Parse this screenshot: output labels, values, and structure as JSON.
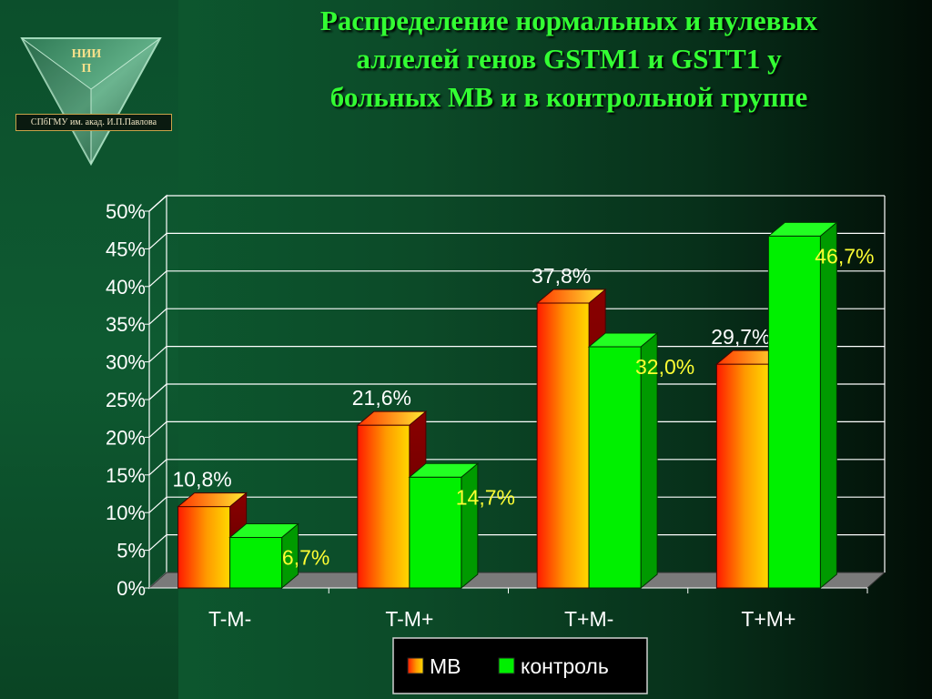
{
  "title_lines": [
    "Распределение нормальных и нулевых",
    "аллелей генов GSTM1 и GSTT1 у",
    "больных МВ и в контрольной группе"
  ],
  "logo": {
    "text_line1": "НИИ",
    "text_line2": "П",
    "caption": "СПбГМУ им. акад. И.П.Павлова"
  },
  "chart_data": {
    "type": "bar",
    "categories": [
      "T-M-",
      "T-M+",
      "T+M-",
      "T+M+"
    ],
    "series": [
      {
        "name": "МВ",
        "values": [
          10.8,
          21.6,
          37.8,
          29.7
        ],
        "labels": [
          "10,8%",
          "21,6%",
          "37,8%",
          "29,7%"
        ],
        "color": "#ff2a00"
      },
      {
        "name": "контроль",
        "values": [
          6.7,
          14.7,
          32.0,
          46.7
        ],
        "labels": [
          "6,7%",
          "14,7%",
          "32,0%",
          "46,7%"
        ],
        "color": "#00e000"
      }
    ],
    "yticks": [
      "0%",
      "5%",
      "10%",
      "15%",
      "20%",
      "25%",
      "30%",
      "35%",
      "40%",
      "45%",
      "50%"
    ],
    "ylim": [
      0,
      50
    ],
    "grid": true,
    "legend_position": "bottom-center",
    "colors": {
      "label_mv": "#ffffff",
      "label_control": "#ffff33",
      "grid": "#ffffff",
      "floor": "#7a7a7a"
    }
  }
}
